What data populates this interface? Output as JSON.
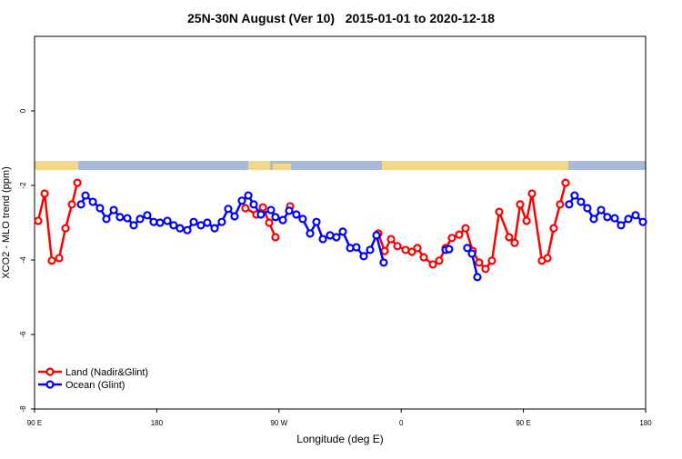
{
  "chart_data": {
    "type": "line",
    "title": "25N-30N August (Ver 10)   2015-01-01 to 2020-12-18",
    "x_label": "Longitude (deg E)",
    "y_label": "XCO2 - MLO trend (ppm)",
    "xlim": [
      90,
      540
    ],
    "xticks": [
      {
        "value": 90,
        "label": "90 E"
      },
      {
        "value": 180,
        "label": "180"
      },
      {
        "value": 270,
        "label": "90 W"
      },
      {
        "value": 360,
        "label": "0"
      },
      {
        "value": 450,
        "label": "90 E"
      },
      {
        "value": 540,
        "label": "180"
      }
    ],
    "ylim": [
      -8,
      2
    ],
    "yticks": [
      0,
      -2,
      -4,
      -6,
      -8
    ],
    "legend": "bottomleft",
    "series": [
      {
        "name": "Land (Nadir&Glint)",
        "color": "#ff0000",
        "x": [
          92.7,
          97.4,
          102.7,
          108.1,
          112.8,
          117.5,
          121.5,
          null,
          245.3,
          253.4,
          258.1,
          262.8,
          267.4,
          null,
          278.2,
          null,
          343.1,
          347.8,
          352.5,
          357.2,
          363.2,
          367.9,
          371.9,
          376.6,
          383.3,
          388.0,
          392.7,
          397.3,
          402.7,
          407.4,
          412.7,
          417.4,
          422.1,
          426.8,
          432.2,
          439.5,
          443.5,
          447.6,
          452.3,
          456.3,
          463.6,
          467.7,
          472.3,
          477.0,
          481.1
        ],
        "values": [
          -2.95,
          -2.22,
          -4.02,
          -3.95,
          -3.15,
          -2.51,
          -1.93,
          null,
          -2.61,
          -2.78,
          -2.59,
          -3.0,
          -3.39,
          null,
          -2.56,
          null,
          -3.29,
          -3.76,
          -3.44,
          -3.63,
          -3.73,
          -3.78,
          -3.68,
          -3.93,
          -4.12,
          -4.02,
          -3.68,
          -3.41,
          -3.32,
          -3.15,
          -3.76,
          -4.07,
          -4.24,
          -4.02,
          -2.71,
          -3.39,
          -3.54,
          -2.51,
          -2.95,
          -2.22,
          -4.02,
          -3.95,
          -3.15,
          -2.51,
          -1.93
        ]
      },
      {
        "name": "Ocean (Glint)",
        "color": "#0000ff",
        "x": [
          124.2,
          127.5,
          132.9,
          138.2,
          142.9,
          148.3,
          152.9,
          158.3,
          163.0,
          167.7,
          173.0,
          177.7,
          182.4,
          187.8,
          192.4,
          197.1,
          202.5,
          207.2,
          212.5,
          217.2,
          222.6,
          227.9,
          232.6,
          237.3,
          242.7,
          247.4,
          251.4,
          256.7,
          264.1,
          267.4,
          272.8,
          277.5,
          282.8,
          287.5,
          292.9,
          297.6,
          302.3,
          307.6,
          312.3,
          317.0,
          322.4,
          327.0,
          332.4,
          337.1,
          341.8,
          347.1,
          null,
          392.7,
          395.3,
          null,
          408.7,
          412.1,
          416.1,
          null,
          483.7,
          487.7,
          492.4,
          497.1,
          501.8,
          507.2,
          511.8,
          517.2,
          521.9,
          527.3,
          532.6,
          538.0
        ],
        "values": [
          -2.51,
          -2.27,
          -2.44,
          -2.61,
          -2.9,
          -2.66,
          -2.85,
          -2.88,
          -3.07,
          -2.9,
          -2.8,
          -2.98,
          -3.0,
          -2.95,
          -3.07,
          -3.15,
          -3.2,
          -2.98,
          -3.07,
          -3.0,
          -3.15,
          -2.98,
          -2.63,
          -2.83,
          -2.41,
          -2.27,
          -2.51,
          -2.78,
          -2.66,
          -2.85,
          -2.93,
          -2.68,
          -2.78,
          -2.9,
          -3.29,
          -2.98,
          -3.44,
          -3.34,
          -3.39,
          -3.24,
          -3.68,
          -3.66,
          -3.9,
          -3.73,
          -3.34,
          -4.07,
          null,
          -3.73,
          -3.71,
          null,
          -3.68,
          -3.83,
          -4.46,
          null,
          -2.51,
          -2.27,
          -2.44,
          -2.61,
          -2.9,
          -2.66,
          -2.85,
          -2.88,
          -3.07,
          -2.9,
          -2.8,
          -2.98
        ]
      }
    ]
  }
}
